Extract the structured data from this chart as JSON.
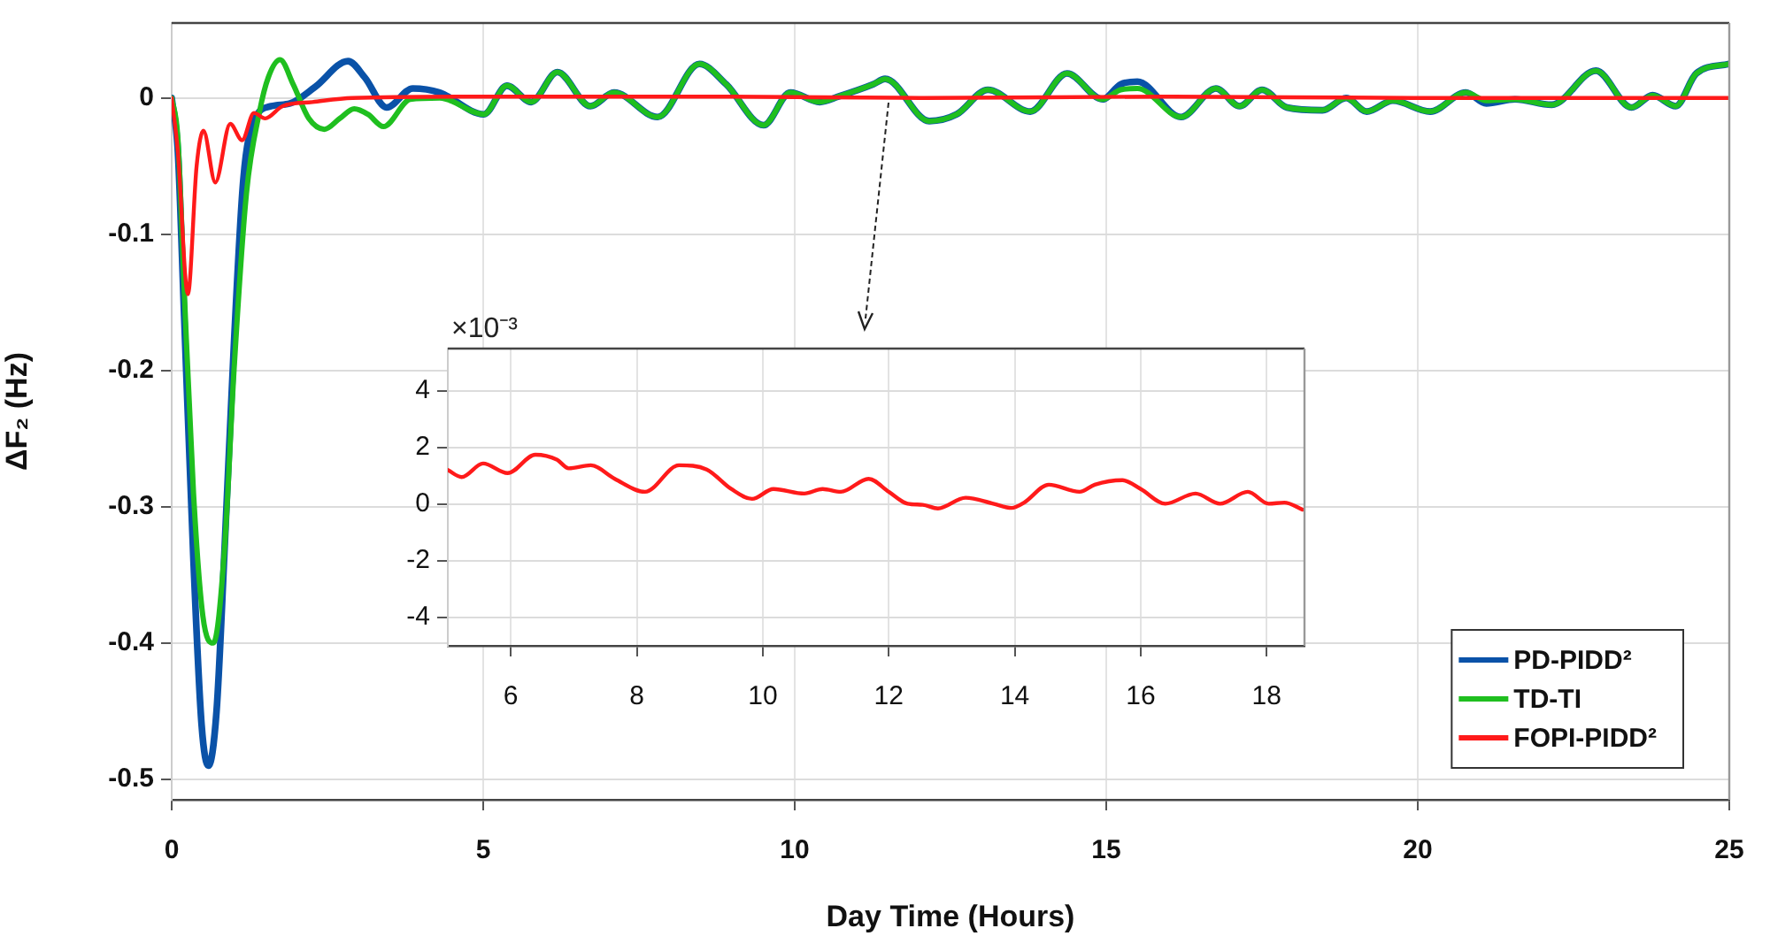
{
  "chart_data": [
    {
      "type": "line",
      "xlabel": "Day Time (Hours)",
      "ylabel": "ΔF₂ (Hz)",
      "xlim": [
        0,
        25
      ],
      "xticks": [
        0,
        5,
        10,
        15,
        20,
        25
      ],
      "ylim": [
        -0.515,
        0.055
      ],
      "yticks": [
        -0.5,
        -0.4,
        -0.3,
        -0.2,
        -0.1,
        0
      ],
      "grid": true,
      "legend": "bottom right",
      "series": [
        {
          "name": "PD-PIDD²",
          "color": "#0a52a8",
          "x": [
            0,
            0.1,
            0.2,
            0.35,
            0.48,
            0.59,
            0.72,
            0.85,
            1.0,
            1.15,
            1.32,
            1.6,
            1.9,
            2.3,
            2.83,
            3.1,
            3.45,
            3.87,
            4.3,
            5.01,
            5.38,
            5.77,
            6.19,
            6.72,
            7.1,
            7.8,
            8.47,
            8.9,
            9.5,
            9.93,
            10.4,
            10.7,
            11.26,
            11.45,
            12.16,
            12.6,
            13.1,
            13.78,
            14.37,
            14.94,
            15.23,
            15.5,
            16.2,
            16.76,
            17.14,
            17.5,
            17.9,
            18.47,
            18.85,
            19.18,
            19.6,
            20.2,
            20.77,
            21.1,
            21.56,
            22.15,
            22.86,
            23.43,
            23.77,
            24.14,
            24.47,
            25
          ],
          "values": [
            0,
            -0.04,
            -0.16,
            -0.34,
            -0.46,
            -0.49,
            -0.45,
            -0.33,
            -0.18,
            -0.06,
            -0.017,
            -0.006,
            -0.004,
            0.008,
            0.027,
            0.015,
            -0.007,
            0.007,
            0.004,
            -0.012,
            0.009,
            -0.003,
            0.019,
            -0.006,
            0.004,
            -0.014,
            0.025,
            0.01,
            -0.02,
            0.004,
            -0.003,
            0.001,
            0.01,
            0.014,
            -0.017,
            -0.012,
            0.006,
            -0.01,
            0.018,
            -0.001,
            0.01,
            0.012,
            -0.014,
            0.007,
            -0.006,
            0.006,
            -0.007,
            -0.009,
            0,
            -0.01,
            -0.002,
            -0.01,
            0.004,
            -0.004,
            -0.001,
            -0.005,
            0.02,
            -0.007,
            0.002,
            -0.006,
            0.018,
            0.025
          ]
        },
        {
          "name": "TD-TI",
          "color": "#1fbf1f",
          "x": [
            0,
            0.1,
            0.2,
            0.35,
            0.5,
            0.67,
            0.85,
            1.0,
            1.2,
            1.41,
            1.55,
            1.74,
            1.95,
            2.2,
            2.45,
            2.7,
            2.93,
            3.15,
            3.4,
            3.83,
            4.3,
            5.01,
            5.38,
            5.77,
            6.19,
            6.72,
            7.1,
            7.8,
            8.47,
            8.9,
            9.5,
            9.93,
            10.4,
            10.7,
            11.26,
            11.45,
            12.16,
            12.6,
            13.1,
            13.78,
            14.37,
            14.94,
            15.23,
            15.5,
            16.2,
            16.76,
            17.14,
            17.5,
            17.9,
            18.47,
            18.85,
            19.18,
            19.6,
            20.2,
            20.77,
            21.1,
            21.56,
            22.15,
            22.86,
            23.43,
            23.77,
            24.14,
            24.47,
            25
          ],
          "values": [
            0,
            -0.03,
            -0.14,
            -0.29,
            -0.38,
            -0.4,
            -0.33,
            -0.2,
            -0.07,
            -0.01,
            0.015,
            0.028,
            0.01,
            -0.015,
            -0.023,
            -0.015,
            -0.008,
            -0.012,
            -0.021,
            -0.001,
            0,
            -0.012,
            0.009,
            -0.003,
            0.019,
            -0.006,
            0.004,
            -0.014,
            0.025,
            0.01,
            -0.02,
            0.004,
            -0.003,
            0.001,
            0.01,
            0.014,
            -0.017,
            -0.012,
            0.006,
            -0.01,
            0.018,
            -0.001,
            0.006,
            0.007,
            -0.014,
            0.007,
            -0.006,
            0.006,
            -0.007,
            -0.009,
            0,
            -0.01,
            -0.002,
            -0.01,
            0.004,
            -0.002,
            -0.001,
            -0.005,
            0.02,
            -0.007,
            0.002,
            -0.006,
            0.018,
            0.025
          ]
        },
        {
          "name": "FOPI-PIDD²",
          "color": "#ff1a1a",
          "x": [
            0,
            0.1,
            0.26,
            0.4,
            0.51,
            0.7,
            0.94,
            1.13,
            1.32,
            1.5,
            1.78,
            2.26,
            2.9,
            5,
            9,
            12,
            16,
            20,
            25
          ],
          "values": [
            0,
            -0.04,
            -0.144,
            -0.05,
            -0.024,
            -0.062,
            -0.019,
            -0.031,
            -0.011,
            -0.015,
            -0.006,
            -0.003,
            0,
            0.001,
            0.001,
            0,
            0.001,
            0,
            0
          ]
        }
      ]
    },
    {
      "type": "line",
      "annotations": [
        "×10⁻³"
      ],
      "xlim": [
        5,
        18.6
      ],
      "xticks": [
        6,
        8,
        10,
        12,
        14,
        16,
        18
      ],
      "ylim": [
        -5,
        5.5
      ],
      "yticks": [
        -4,
        -2,
        0,
        2,
        4
      ],
      "grid": true,
      "series": [
        {
          "color": "#ff1a1a",
          "x": [
            5,
            5.22,
            5.56,
            5.95,
            6.39,
            6.73,
            6.92,
            7.27,
            7.65,
            8.13,
            8.67,
            9.11,
            9.5,
            9.83,
            10.17,
            10.66,
            10.95,
            11.24,
            11.68,
            12.0,
            12.3,
            12.54,
            12.78,
            13.22,
            13.66,
            13.95,
            14.15,
            14.54,
            15.03,
            15.27,
            15.71,
            16.0,
            16.39,
            16.87,
            17.26,
            17.7,
            18.03,
            18.28,
            18.57
          ],
          "values": [
            1.21,
            0.96,
            1.44,
            1.1,
            1.75,
            1.58,
            1.27,
            1.38,
            0.9,
            0.44,
            1.38,
            1.23,
            0.54,
            0.19,
            0.54,
            0.38,
            0.54,
            0.44,
            0.9,
            0.44,
            0.02,
            -0.02,
            -0.15,
            0.23,
            0.02,
            -0.13,
            0.06,
            0.69,
            0.44,
            0.69,
            0.85,
            0.54,
            0.02,
            0.38,
            0.02,
            0.44,
            0.02,
            0.06,
            -0.19
          ]
        }
      ]
    }
  ]
}
